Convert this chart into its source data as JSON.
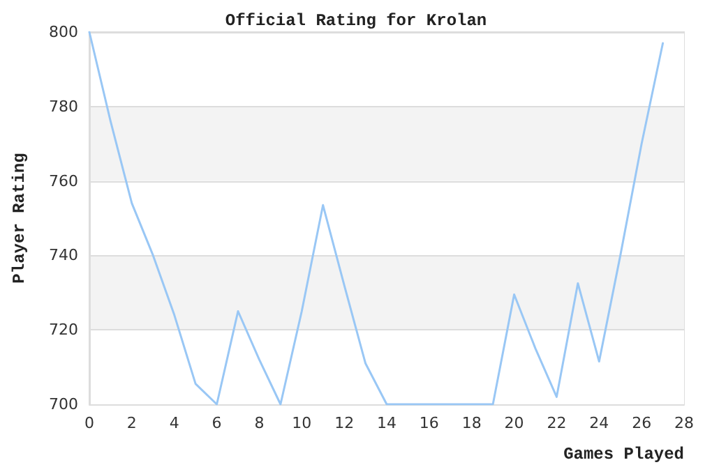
{
  "chart_data": {
    "type": "line",
    "title": "Official Rating for Krolan",
    "xlabel": "Games Played",
    "ylabel": "Player Rating",
    "x": [
      0,
      1,
      2,
      3,
      4,
      5,
      6,
      7,
      8,
      9,
      10,
      11,
      12,
      13,
      14,
      15,
      16,
      17,
      18,
      19,
      20,
      21,
      22,
      23,
      24,
      25,
      26,
      27
    ],
    "series": [
      {
        "color": "#99c7f5",
        "values": [
          800,
          776,
          754,
          740,
          724,
          705.5,
          700,
          725,
          712,
          700,
          725,
          753.5,
          732,
          711,
          700,
          700,
          700,
          700,
          700,
          700,
          729.5,
          715,
          702,
          732.5,
          711.5,
          740,
          770,
          797
        ]
      }
    ],
    "xlim": [
      0,
      28
    ],
    "xticks": [
      0,
      2,
      4,
      6,
      8,
      10,
      12,
      14,
      16,
      18,
      20,
      22,
      24,
      26,
      28
    ],
    "ylim": [
      700,
      800
    ],
    "yticks": [
      700,
      720,
      740,
      760,
      780,
      800
    ],
    "grid": "y",
    "marker": "none",
    "line_style": "solid"
  }
}
